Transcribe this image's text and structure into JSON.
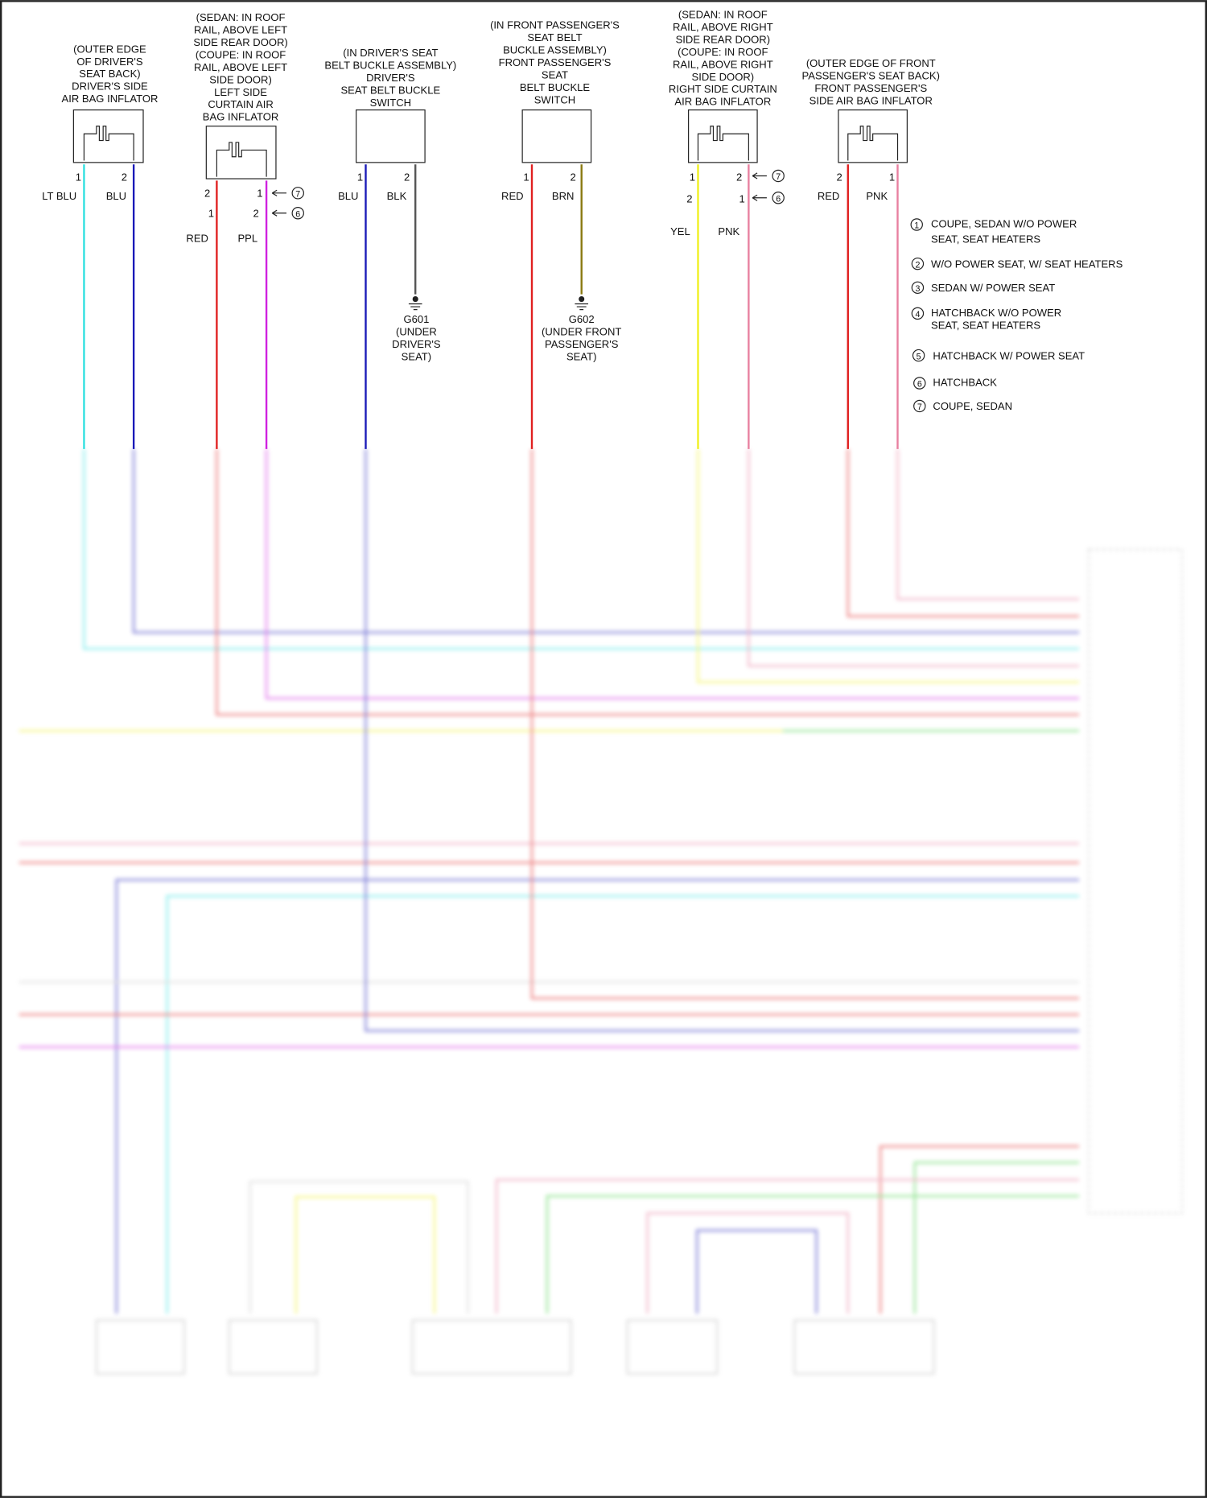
{
  "components": [
    {
      "label_lines": [
        "(OUTER EDGE",
        "OF DRIVER'S",
        "SEAT BACK)",
        "DRIVER'S SIDE",
        "AIR BAG INFLATOR"
      ],
      "pins": [
        "1",
        "2"
      ],
      "wires": [
        "LT BLU",
        "BLU"
      ],
      "wire_colors": [
        "#2fe0e0",
        "#1a1ab8"
      ]
    },
    {
      "label_lines": [
        "(SEDAN: IN ROOF",
        "RAIL, ABOVE LEFT",
        "SIDE REAR DOOR)",
        "(COUPE: IN ROOF",
        "RAIL, ABOVE LEFT",
        "SIDE DOOR)",
        "LEFT SIDE",
        "CURTAIN AIR",
        "BAG INFLATOR"
      ],
      "pins_a": [
        "2",
        "1"
      ],
      "pins_b": [
        "1",
        "2"
      ],
      "pin_notes": [
        "7",
        "6"
      ],
      "wires": [
        "RED",
        "PPL"
      ],
      "wire_colors": [
        "#e02020",
        "#d020e0"
      ]
    },
    {
      "label_lines": [
        "(IN DRIVER'S SEAT",
        "BELT BUCKLE ASSEMBLY)",
        "DRIVER'S",
        "SEAT BELT BUCKLE",
        "SWITCH"
      ],
      "pins": [
        "1",
        "2"
      ],
      "wires": [
        "BLU",
        "BLK"
      ],
      "wire_colors": [
        "#1a1ab8",
        "#555555"
      ],
      "ground": [
        "G601",
        "(UNDER",
        "DRIVER'S",
        "SEAT)"
      ]
    },
    {
      "label_lines": [
        "(IN FRONT PASSENGER'S",
        "SEAT BELT",
        "BUCKLE ASSEMBLY)",
        "FRONT PASSENGER'S",
        "SEAT",
        "BELT BUCKLE",
        "SWITCH"
      ],
      "pins": [
        "1",
        "2"
      ],
      "wires": [
        "RED",
        "BRN"
      ],
      "wire_colors": [
        "#e02020",
        "#8a7a10"
      ],
      "ground": [
        "G602",
        "(UNDER FRONT",
        "PASSENGER'S",
        "SEAT)"
      ]
    },
    {
      "label_lines": [
        "(SEDAN: IN ROOF",
        "RAIL, ABOVE RIGHT",
        "SIDE REAR DOOR)",
        "(COUPE: IN ROOF",
        "RAIL, ABOVE RIGHT",
        "SIDE DOOR)",
        "RIGHT SIDE CURTAIN",
        "AIR BAG INFLATOR"
      ],
      "pins_a": [
        "1",
        "2"
      ],
      "pins_b": [
        "2",
        "1"
      ],
      "pin_notes": [
        "7",
        "6"
      ],
      "wires": [
        "YEL",
        "PNK"
      ],
      "wire_colors": [
        "#f0f020",
        "#e880a0"
      ]
    },
    {
      "label_lines": [
        "(OUTER EDGE OF FRONT",
        "PASSENGER'S SEAT BACK)",
        "FRONT PASSENGER'S",
        "SIDE AIR BAG INFLATOR"
      ],
      "pins": [
        "2",
        "1"
      ],
      "wires": [
        "RED",
        "PNK"
      ],
      "wire_colors": [
        "#e02020",
        "#e880a0"
      ]
    }
  ],
  "legend": [
    {
      "num": "1",
      "lines": [
        "COUPE, SEDAN W/O POWER",
        "SEAT, SEAT HEATERS"
      ]
    },
    {
      "num": "2",
      "lines": [
        "W/O POWER SEAT, W/ SEAT HEATERS"
      ]
    },
    {
      "num": "3",
      "lines": [
        "SEDAN W/ POWER SEAT"
      ]
    },
    {
      "num": "4",
      "lines": [
        "HATCHBACK W/O POWER",
        "SEAT, SEAT HEATERS"
      ]
    },
    {
      "num": "5",
      "lines": [
        "HATCHBACK W/ POWER SEAT"
      ]
    },
    {
      "num": "6",
      "lines": [
        "HATCHBACK"
      ]
    },
    {
      "num": "7",
      "lines": [
        "COUPE, SEDAN"
      ]
    }
  ]
}
